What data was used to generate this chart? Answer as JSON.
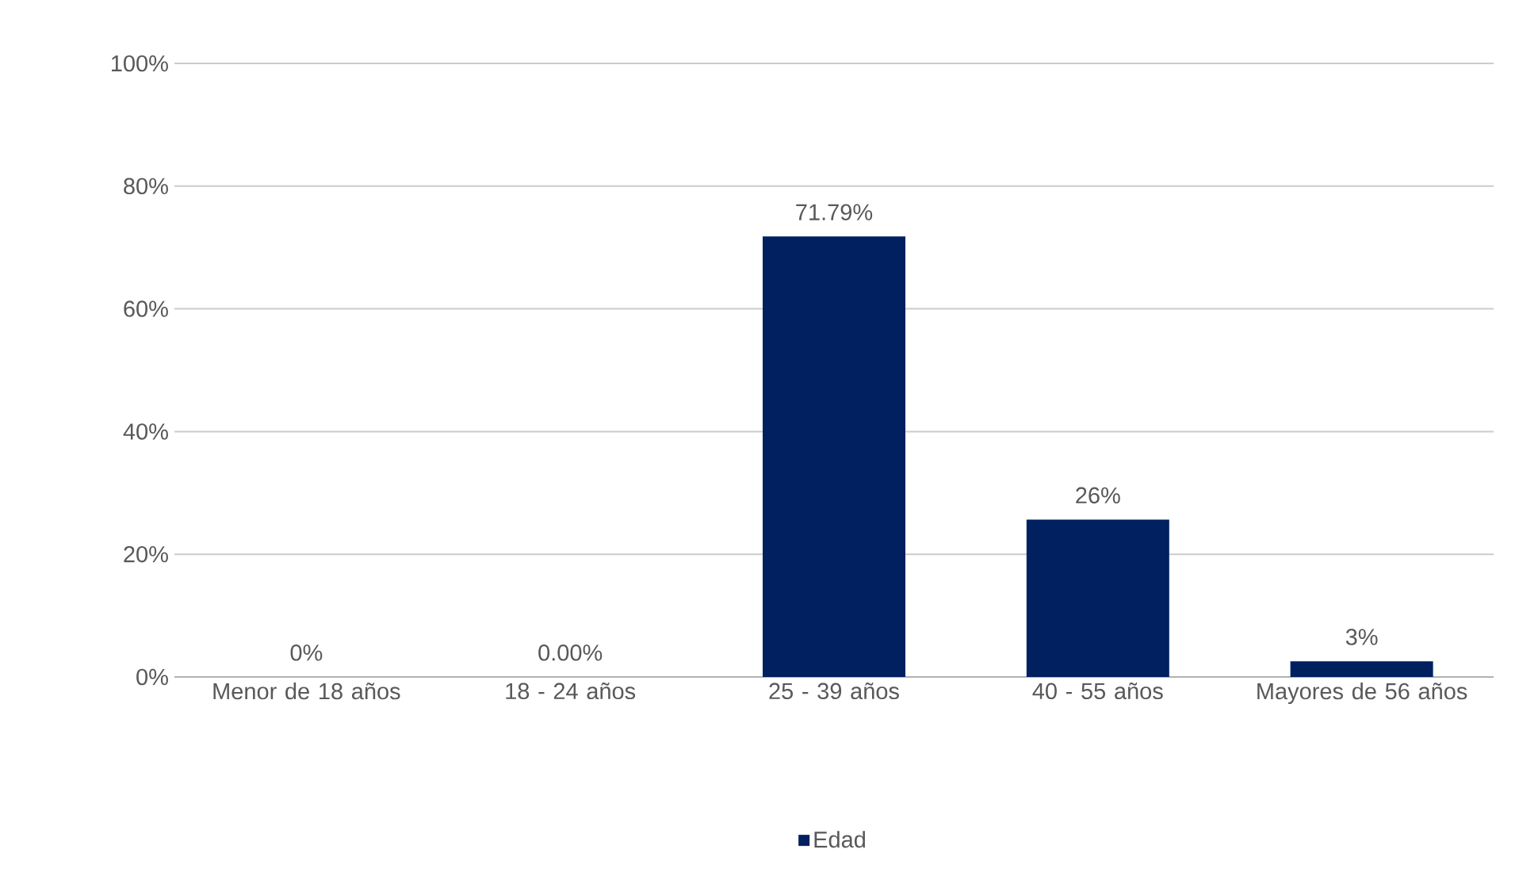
{
  "chart_data": {
    "type": "bar",
    "categories": [
      "Menor de 18 años",
      "18 - 24 años",
      "25 - 39 años",
      "40 - 55 años",
      "Mayores de 56 años"
    ],
    "series": [
      {
        "name": "Edad",
        "color": "#002060",
        "values": [
          0,
          0,
          71.79,
          25.64,
          2.56
        ],
        "value_labels": [
          "0%",
          "0.00%",
          "71.79%",
          "26%",
          "3%"
        ]
      }
    ],
    "ylim": [
      0,
      100
    ],
    "yticks": [
      {
        "value": 0,
        "label": "0%"
      },
      {
        "value": 20,
        "label": "20%"
      },
      {
        "value": 40,
        "label": "40%"
      },
      {
        "value": 60,
        "label": "60%"
      },
      {
        "value": 80,
        "label": "80%"
      },
      {
        "value": 100,
        "label": "100%"
      }
    ],
    "grid": "y",
    "legend": "bottom"
  }
}
